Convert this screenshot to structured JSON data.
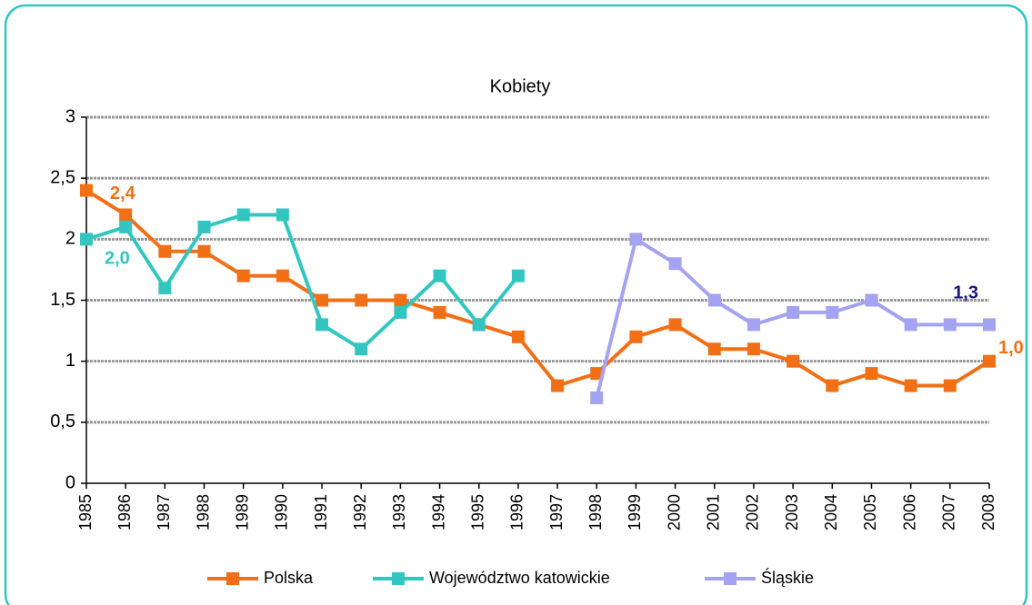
{
  "chart_data": {
    "type": "line",
    "title": "Kobiety",
    "categories": [
      "1985",
      "1986",
      "1987",
      "1988",
      "1989",
      "1990",
      "1991",
      "1992",
      "1993",
      "1994",
      "1995",
      "1996",
      "1997",
      "1998",
      "1999",
      "2000",
      "2001",
      "2002",
      "2003",
      "2004",
      "2005",
      "2006",
      "2007",
      "2008"
    ],
    "series": [
      {
        "name": "Polska",
        "color": "#f26f16",
        "label_color": "#f26f16",
        "values": [
          2.4,
          2.2,
          1.9,
          1.9,
          1.7,
          1.7,
          1.5,
          1.5,
          1.5,
          1.4,
          1.3,
          1.2,
          0.8,
          0.9,
          1.2,
          1.3,
          1.1,
          1.1,
          1.0,
          0.8,
          0.9,
          0.8,
          0.8,
          1.0
        ],
        "value_labels": [
          "2,4",
          null,
          null,
          null,
          null,
          null,
          null,
          null,
          null,
          null,
          null,
          null,
          null,
          null,
          null,
          null,
          null,
          null,
          null,
          null,
          null,
          null,
          null,
          "1,0"
        ]
      },
      {
        "name": "Województwo katowickie",
        "color": "#33c6c0",
        "label_color": "#33c6c0",
        "values": [
          2.0,
          2.1,
          1.6,
          2.1,
          2.2,
          2.2,
          1.3,
          1.1,
          1.4,
          1.7,
          1.3,
          1.7,
          null,
          null,
          null,
          null,
          null,
          null,
          null,
          null,
          null,
          null,
          null,
          null
        ],
        "value_labels": [
          "2,0",
          null,
          null,
          null,
          null,
          null,
          null,
          null,
          null,
          null,
          null,
          null,
          null,
          null,
          null,
          null,
          null,
          null,
          null,
          null,
          null,
          null,
          null,
          null
        ]
      },
      {
        "name": "Śląskie",
        "color": "#a3a3f2",
        "label_color": "#1a1a7a",
        "values": [
          null,
          null,
          null,
          null,
          null,
          null,
          null,
          null,
          null,
          null,
          null,
          null,
          null,
          0.7,
          2.0,
          1.8,
          1.5,
          1.3,
          1.4,
          1.4,
          1.5,
          1.3,
          1.3,
          1.3
        ],
        "value_labels": [
          null,
          null,
          null,
          null,
          null,
          null,
          null,
          null,
          null,
          null,
          null,
          null,
          null,
          null,
          null,
          null,
          null,
          null,
          null,
          null,
          null,
          null,
          null,
          "1,3"
        ]
      }
    ],
    "ylim": [
      0,
      3
    ],
    "yticks": [
      0,
      {
        "value": 0.5,
        "label": "0,5"
      },
      1,
      {
        "value": 1.5,
        "label": "1,5"
      },
      2,
      {
        "value": 2.5,
        "label": "2,5"
      },
      3
    ],
    "grid": true,
    "legend": "bottom"
  }
}
